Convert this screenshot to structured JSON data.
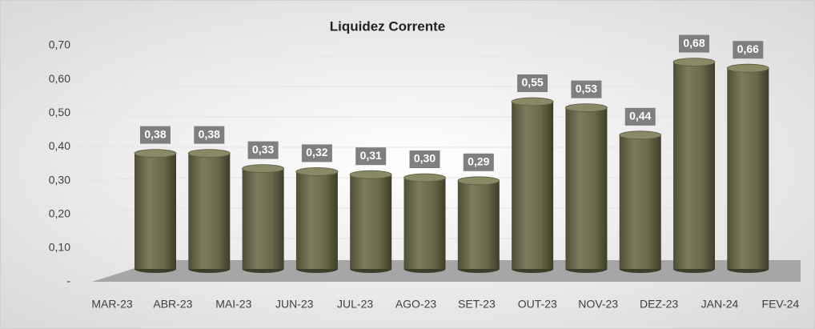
{
  "chart_data": {
    "type": "bar",
    "title": "Liquidez Corrente",
    "categories": [
      "MAR-23",
      "ABR-23",
      "MAI-23",
      "JUN-23",
      "JUL-23",
      "AGO-23",
      "SET-23",
      "OUT-23",
      "NOV-23",
      "DEZ-23",
      "JAN-24",
      "FEV-24"
    ],
    "values": [
      0.38,
      0.38,
      0.33,
      0.32,
      0.31,
      0.3,
      0.29,
      0.55,
      0.53,
      0.44,
      0.68,
      0.66
    ],
    "value_labels": [
      "0,38",
      "0,38",
      "0,33",
      "0,32",
      "0,31",
      "0,30",
      "0,29",
      "0,55",
      "0,53",
      "0,44",
      "0,68",
      "0,66"
    ],
    "color": "#6b6a4c",
    "ylim": [
      0,
      0.7
    ],
    "yticks": [
      {
        "value": 0,
        "label": "-"
      },
      {
        "value": 0.1,
        "label": "0,10"
      },
      {
        "value": 0.2,
        "label": "0,20"
      },
      {
        "value": 0.3,
        "label": "0,30"
      },
      {
        "value": 0.4,
        "label": "0,40"
      },
      {
        "value": 0.5,
        "label": "0,50"
      },
      {
        "value": 0.6,
        "label": "0,60"
      },
      {
        "value": 0.7,
        "label": "0,70"
      }
    ],
    "grid": true
  }
}
